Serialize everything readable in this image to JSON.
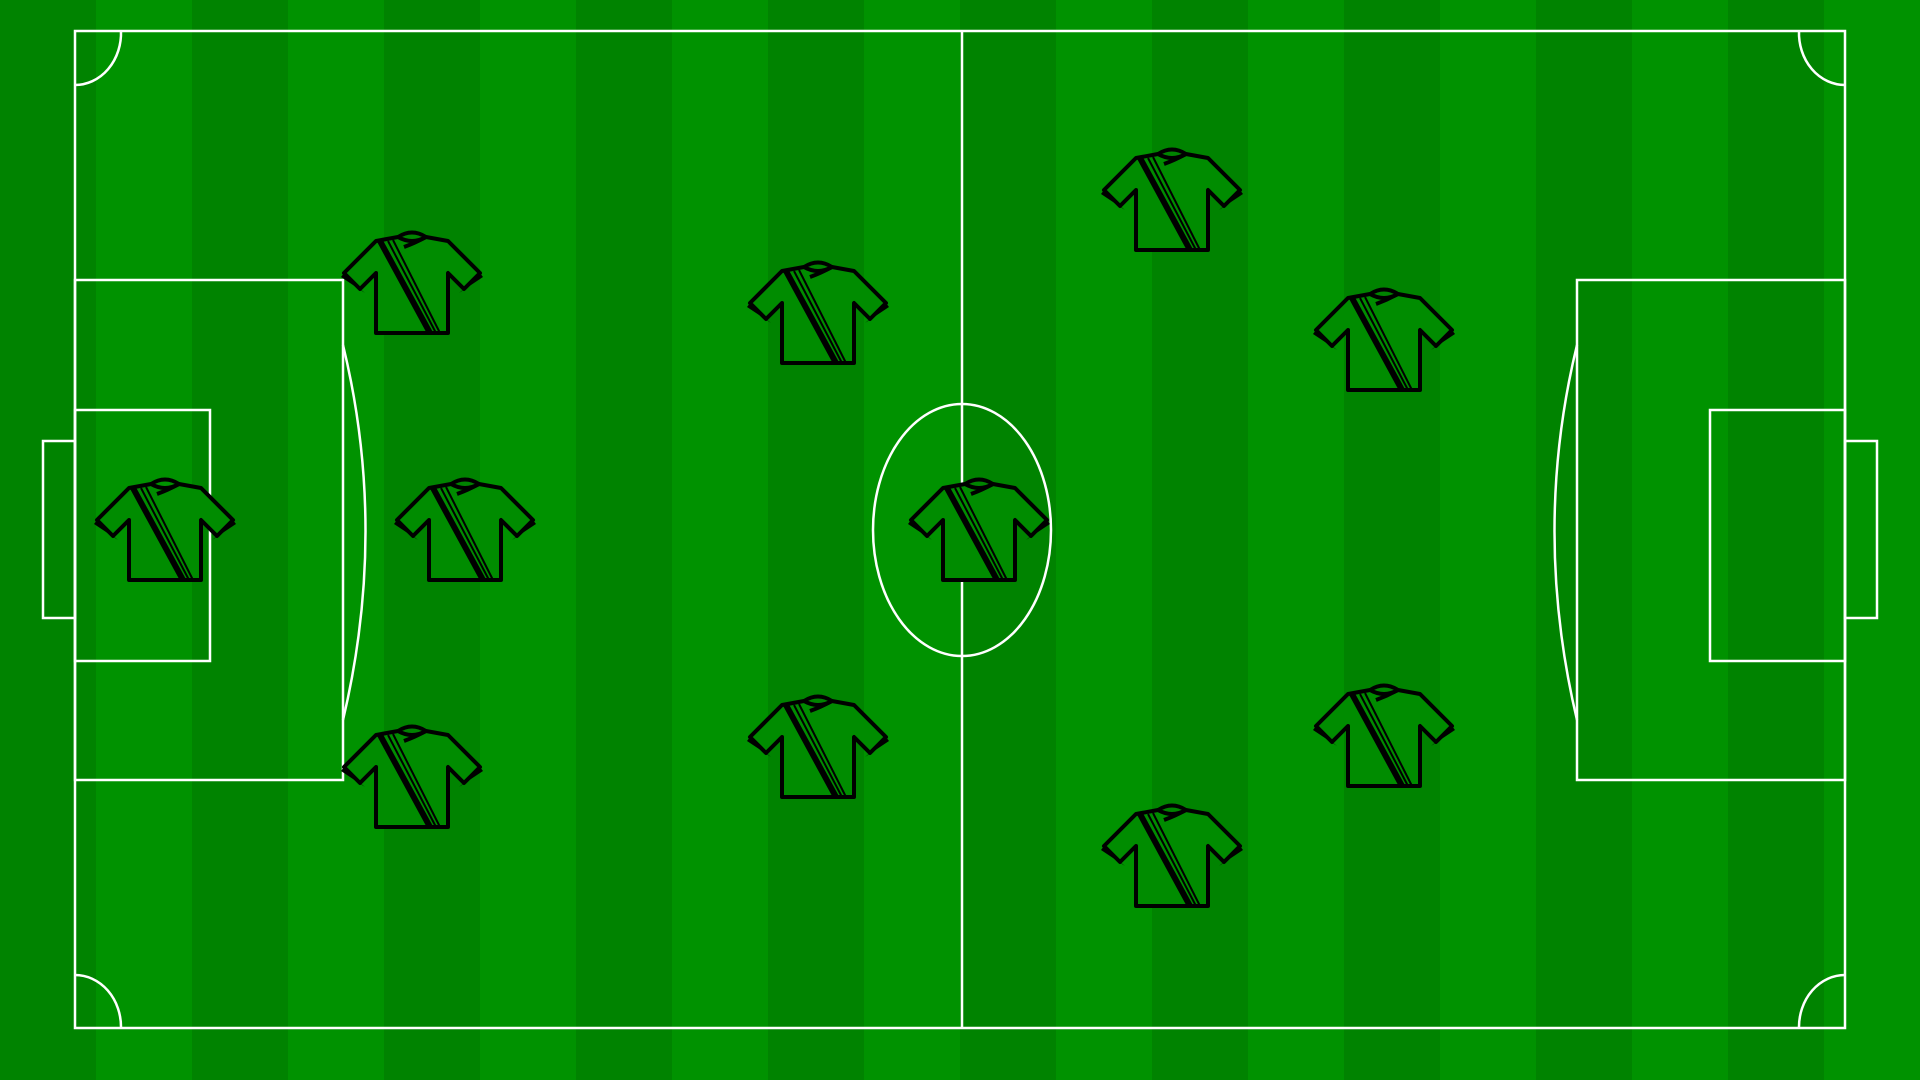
{
  "pitch": {
    "stripe_colors": [
      "#008300",
      "#009200"
    ],
    "line_color": "#ffffff"
  },
  "kit": {
    "shirt_color": "#008c00",
    "outline_color": "#000000"
  },
  "players": [
    {
      "id": "gk"
    },
    {
      "id": "def-top"
    },
    {
      "id": "def-mid"
    },
    {
      "id": "def-bottom"
    },
    {
      "id": "mid-top"
    },
    {
      "id": "mid-center"
    },
    {
      "id": "mid-bottom"
    },
    {
      "id": "att-top-far"
    },
    {
      "id": "att-top"
    },
    {
      "id": "att-bottom"
    },
    {
      "id": "att-bottom-far"
    }
  ]
}
